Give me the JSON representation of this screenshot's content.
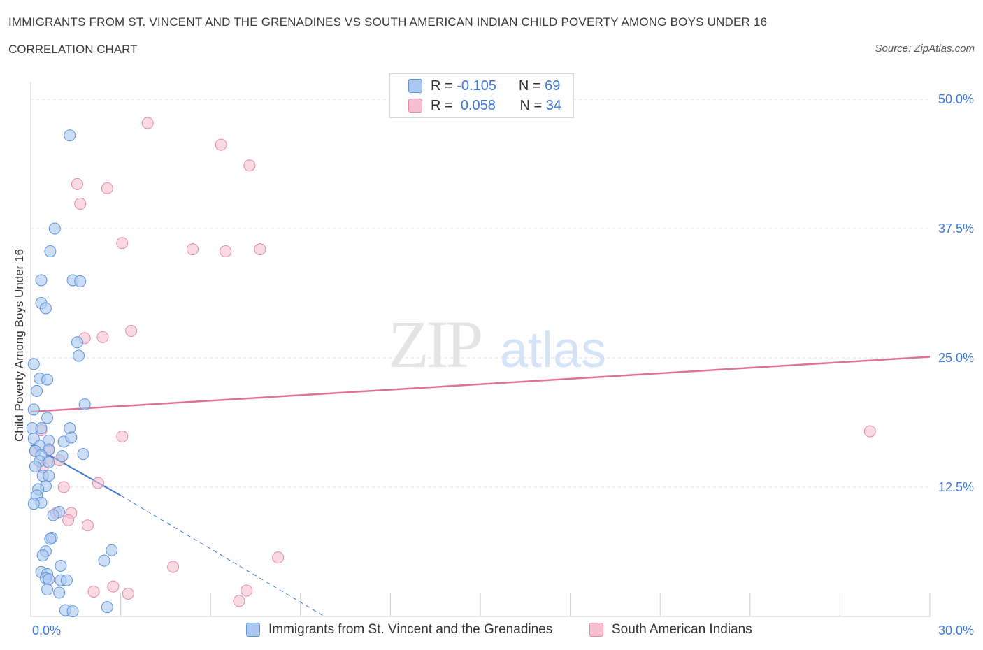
{
  "title": "IMMIGRANTS FROM ST. VINCENT AND THE GRENADINES VS SOUTH AMERICAN INDIAN CHILD POVERTY AMONG BOYS UNDER 16",
  "subtitle": "CORRELATION CHART",
  "source": "Source: ZipAtlas.com",
  "watermark": {
    "zip": "ZIP",
    "atlas": "atlas"
  },
  "legend_top": {
    "rows": [
      {
        "r_label": "R =",
        "r_value": "-0.105",
        "n_label": "N =",
        "n_value": "69"
      },
      {
        "r_label": "R =",
        "r_value": "0.058",
        "n_label": "N =",
        "n_value": "34"
      }
    ]
  },
  "legend_bottom": {
    "items": [
      {
        "label": "Immigrants from St. Vincent and the Grenadines"
      },
      {
        "label": "South American Indians"
      }
    ]
  },
  "colors": {
    "blue_fill": "#aac8f0",
    "blue_stroke": "#5b93d9",
    "blue_line": "#3b78d8",
    "pink_fill": "#f5bfcf",
    "pink_stroke": "#e88aa5",
    "pink_line": "#e0729a",
    "axis_text": "#3b78d8",
    "grid": "#dddddd"
  },
  "chart_data": {
    "type": "scatter",
    "ylabel": "Child Poverty Among Boys Under 16",
    "xlim": [
      0,
      30
    ],
    "ylim": [
      0,
      50
    ],
    "x_tick_labels": [
      {
        "value": 0,
        "label": "0.0%"
      },
      {
        "value": 30,
        "label": "30.0%"
      }
    ],
    "y_tick_labels": [
      {
        "value": 12.5,
        "label": "12.5%"
      },
      {
        "value": 25,
        "label": "25.0%"
      },
      {
        "value": 37.5,
        "label": "37.5%"
      },
      {
        "value": 50,
        "label": "50.0%"
      }
    ],
    "series": [
      {
        "name": "Immigrants from St. Vincent and the Grenadines",
        "color": "#aac8f0",
        "points": [
          [
            1.3,
            46.5
          ],
          [
            0.8,
            37.5
          ],
          [
            0.65,
            35.3
          ],
          [
            0.35,
            32.5
          ],
          [
            1.4,
            32.5
          ],
          [
            1.65,
            32.4
          ],
          [
            0.35,
            30.3
          ],
          [
            0.5,
            29.8
          ],
          [
            1.55,
            26.5
          ],
          [
            1.6,
            25.2
          ],
          [
            0.1,
            24.4
          ],
          [
            0.3,
            23.0
          ],
          [
            0.55,
            22.9
          ],
          [
            0.2,
            21.8
          ],
          [
            1.8,
            20.5
          ],
          [
            0.1,
            20.0
          ],
          [
            0.55,
            19.2
          ],
          [
            0.05,
            18.2
          ],
          [
            0.35,
            18.2
          ],
          [
            1.3,
            18.2
          ],
          [
            0.1,
            17.2
          ],
          [
            0.6,
            17.0
          ],
          [
            1.1,
            16.9
          ],
          [
            1.35,
            17.3
          ],
          [
            0.3,
            16.5
          ],
          [
            0.15,
            16.0
          ],
          [
            0.6,
            16.1
          ],
          [
            0.35,
            15.6
          ],
          [
            1.05,
            15.5
          ],
          [
            1.75,
            15.7
          ],
          [
            0.3,
            15.0
          ],
          [
            0.6,
            14.9
          ],
          [
            0.15,
            14.5
          ],
          [
            0.4,
            13.6
          ],
          [
            0.6,
            13.6
          ],
          [
            0.5,
            12.6
          ],
          [
            0.25,
            12.3
          ],
          [
            0.2,
            11.7
          ],
          [
            0.35,
            11.0
          ],
          [
            0.1,
            10.9
          ],
          [
            0.95,
            10.1
          ],
          [
            0.75,
            9.8
          ],
          [
            0.7,
            7.6
          ],
          [
            0.65,
            7.5
          ],
          [
            0.5,
            6.3
          ],
          [
            0.4,
            5.9
          ],
          [
            2.7,
            6.4
          ],
          [
            2.45,
            5.4
          ],
          [
            1.0,
            4.9
          ],
          [
            0.35,
            4.3
          ],
          [
            0.55,
            4.1
          ],
          [
            0.5,
            3.7
          ],
          [
            0.6,
            3.6
          ],
          [
            1.0,
            3.5
          ],
          [
            1.2,
            3.5
          ],
          [
            0.55,
            2.6
          ],
          [
            0.95,
            2.3
          ],
          [
            2.55,
            0.9
          ],
          [
            1.15,
            0.6
          ],
          [
            1.4,
            0.5
          ]
        ]
      },
      {
        "name": "South American Indians",
        "color": "#f5bfcf",
        "points": [
          [
            3.9,
            47.7
          ],
          [
            6.35,
            45.6
          ],
          [
            7.3,
            43.6
          ],
          [
            1.55,
            41.8
          ],
          [
            2.55,
            41.4
          ],
          [
            1.65,
            39.9
          ],
          [
            3.05,
            36.1
          ],
          [
            5.4,
            35.5
          ],
          [
            6.5,
            35.3
          ],
          [
            7.65,
            35.5
          ],
          [
            3.35,
            27.6
          ],
          [
            2.4,
            27.0
          ],
          [
            1.8,
            26.9
          ],
          [
            3.05,
            17.4
          ],
          [
            0.35,
            18.0
          ],
          [
            28.0,
            17.9
          ],
          [
            0.6,
            16.2
          ],
          [
            0.15,
            16.0
          ],
          [
            0.55,
            15.0
          ],
          [
            0.95,
            15.1
          ],
          [
            0.4,
            14.4
          ],
          [
            2.25,
            12.9
          ],
          [
            1.1,
            12.5
          ],
          [
            0.85,
            10.0
          ],
          [
            1.35,
            10.0
          ],
          [
            1.25,
            9.3
          ],
          [
            1.9,
            8.8
          ],
          [
            8.25,
            5.7
          ],
          [
            4.75,
            4.8
          ],
          [
            2.75,
            2.9
          ],
          [
            2.1,
            2.4
          ],
          [
            3.25,
            2.2
          ],
          [
            7.2,
            2.5
          ],
          [
            6.95,
            1.5
          ]
        ]
      }
    ],
    "trend_lines": [
      {
        "series": "Immigrants from St. Vincent and the Grenadines",
        "x0": 0,
        "y0": 16.6,
        "x1": 3.0,
        "y1": 11.7,
        "x_dash_end": 9.8,
        "y_dash_end": 0,
        "color": "#3b78d8"
      },
      {
        "series": "South American Indians",
        "x0": 0,
        "y0": 19.8,
        "x1": 30,
        "y1": 25.1,
        "color": "#e0729a"
      }
    ]
  }
}
